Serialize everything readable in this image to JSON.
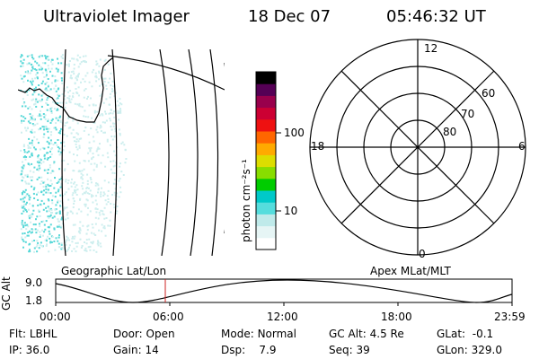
{
  "header": {
    "instrument": "Ultraviolet Imager",
    "date": "18 Dec 07",
    "time": "05:46:32 UT"
  },
  "colorbar": {
    "label": "photon cm⁻²s⁻¹",
    "ticks": [
      "100",
      "10"
    ],
    "colors": [
      "#ffffff",
      "#e6f5f5",
      "#bfeaea",
      "#55dddd",
      "#00c9c9",
      "#00cc00",
      "#88dd00",
      "#dddd00",
      "#ffaa00",
      "#ff6600",
      "#ee1111",
      "#cc0033",
      "#99004c",
      "#550055",
      "#000000"
    ]
  },
  "polar": {
    "mlt_labels": [
      "12",
      "18",
      "6",
      "0"
    ],
    "lat_labels": [
      "60",
      "70",
      "80"
    ]
  },
  "map": {
    "aurora_color": "#58d8d8",
    "aurora_color_light": "#cdeeee"
  },
  "altitude_panel": {
    "axis_label": "GC Alt",
    "left_title": "Geographic Lat/Lon",
    "right_title": "Apex MLat/MLT",
    "y_ticks": [
      "9.0",
      "1.8"
    ],
    "x_ticks": [
      "00:00",
      "06:00",
      "12:00",
      "18:00",
      "23:59"
    ],
    "marker_color": "#cc2222"
  },
  "status": {
    "row1": [
      {
        "label": "Flt:",
        "value": "LBHL"
      },
      {
        "label": "Door:",
        "value": "Open"
      },
      {
        "label": "Mode:",
        "value": "Normal"
      },
      {
        "label": "GC Alt:",
        "value": "4.5 Re"
      },
      {
        "label": "GLat:",
        "value": "-0.1"
      }
    ],
    "row2": [
      {
        "label": "IP:",
        "value": "36.0"
      },
      {
        "label": "Gain:",
        "value": "14"
      },
      {
        "label": "Dsp:",
        "value": "7.9"
      },
      {
        "label": "Seq:",
        "value": "39"
      },
      {
        "label": "GLon:",
        "value": "329.0"
      }
    ]
  }
}
